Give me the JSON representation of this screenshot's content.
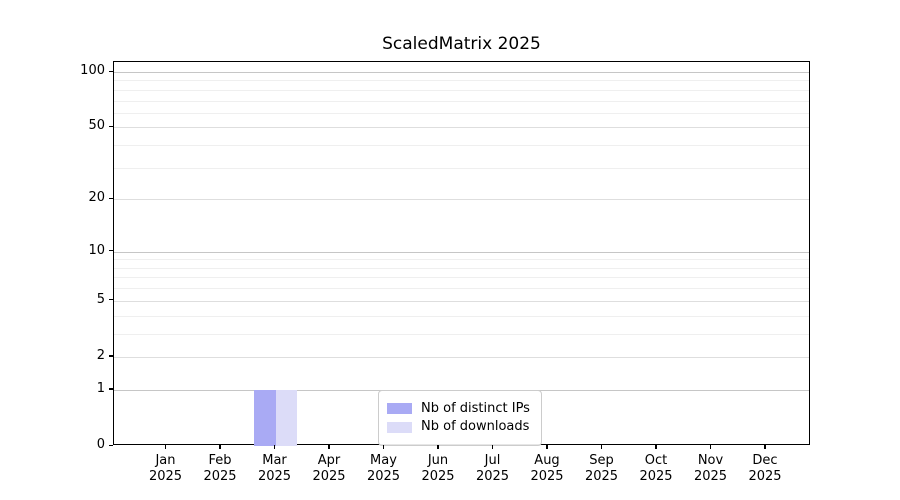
{
  "title": "ScaledMatrix 2025",
  "chart_data": {
    "type": "bar",
    "title": "ScaledMatrix 2025",
    "x_categories": [
      "Jan 2025",
      "Feb 2025",
      "Mar 2025",
      "Apr 2025",
      "May 2025",
      "Jun 2025",
      "Jul 2025",
      "Aug 2025",
      "Sep 2025",
      "Oct 2025",
      "Nov 2025",
      "Dec 2025"
    ],
    "series": [
      {
        "name": "Nb of distinct IPs",
        "color": "#a9aaf4",
        "values": [
          0,
          0,
          1,
          0,
          0,
          0,
          0,
          0,
          0,
          0,
          0,
          0
        ]
      },
      {
        "name": "Nb of downloads",
        "color": "#dcdcf8",
        "values": [
          0,
          0,
          1,
          0,
          0,
          0,
          0,
          0,
          0,
          0,
          0,
          0
        ]
      }
    ],
    "yscale": "log1p",
    "ylim": [
      0,
      113.3
    ],
    "y_labeled_ticks": [
      0,
      1,
      2,
      5,
      10,
      20,
      50,
      100
    ],
    "y_tick_labels": [
      "0",
      "1",
      "2",
      "5",
      "10",
      "20",
      "50",
      "100"
    ],
    "y_strong_grid_ticks": [
      1,
      10,
      100
    ],
    "y_minor_ticks": [
      3,
      4,
      6,
      7,
      8,
      9,
      30,
      40,
      60,
      70,
      80,
      90
    ],
    "grid": true,
    "legend_position": "lower center",
    "colors": {
      "grid_strong": "#c6c6c6",
      "grid_major": "#dedede",
      "grid_minor": "#efefef",
      "spine": "#000000",
      "text": "#000000",
      "legend_border": "#cccccc",
      "background": "#ffffff"
    }
  }
}
